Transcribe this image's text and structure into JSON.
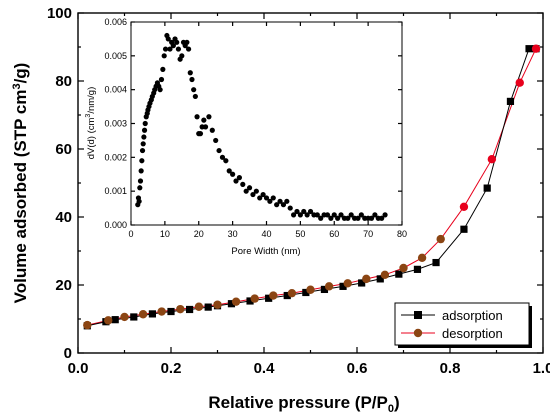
{
  "chart_data": [
    {
      "type": "line",
      "xlabel": "Relative pressure (P/P",
      "xlabel_sub": "0",
      "xlabel_tail": ")",
      "ylabel": "Volume adsorbed (STP cm",
      "ylabel_sup": "3",
      "ylabel_tail": "/g)",
      "xlim": [
        0.0,
        1.0
      ],
      "ylim": [
        0,
        100
      ],
      "xticks": [
        "0.0",
        "0.2",
        "0.4",
        "0.6",
        "0.8",
        "1.0"
      ],
      "yticks": [
        "0",
        "20",
        "40",
        "60",
        "80",
        "100"
      ],
      "legend_position": "bottom-right",
      "series": [
        {
          "name": "adsorption",
          "color": "#000000",
          "marker": "square",
          "x": [
            0.02,
            0.06,
            0.08,
            0.12,
            0.16,
            0.2,
            0.24,
            0.28,
            0.3,
            0.33,
            0.37,
            0.41,
            0.45,
            0.49,
            0.53,
            0.57,
            0.61,
            0.65,
            0.69,
            0.73,
            0.77,
            0.83,
            0.88,
            0.93,
            0.97,
            0.985
          ],
          "y": [
            8.0,
            9.2,
            9.8,
            10.6,
            11.5,
            12.2,
            12.8,
            13.5,
            13.9,
            14.5,
            15.3,
            16.1,
            16.9,
            17.8,
            18.7,
            19.6,
            20.6,
            21.8,
            23.2,
            24.6,
            26.6,
            36.4,
            48.5,
            74.0,
            89.5,
            89.5
          ],
          "values_note": ""
        },
        {
          "name": "desorption",
          "color": "#8b4513",
          "line_color": "#e8001c",
          "marker": "circle",
          "x": [
            0.985,
            0.95,
            0.89,
            0.83,
            0.78,
            0.74,
            0.7,
            0.66,
            0.62,
            0.58,
            0.54,
            0.5,
            0.46,
            0.42,
            0.38,
            0.34,
            0.3,
            0.26,
            0.22,
            0.18,
            0.14,
            0.1,
            0.065,
            0.02
          ],
          "y": [
            89.5,
            79.5,
            57.0,
            43.0,
            33.5,
            28.0,
            25.0,
            23.0,
            21.8,
            20.5,
            19.6,
            18.6,
            17.6,
            16.9,
            16.0,
            15.1,
            14.2,
            13.6,
            12.9,
            12.2,
            11.4,
            10.6,
            9.6,
            8.2
          ]
        }
      ]
    },
    {
      "type": "scatter",
      "xlabel": "Pore Width (nm)",
      "ylabel": "dV(d) (cm",
      "ylabel_sup": "3",
      "ylabel_tail": "/nm/g)",
      "xlim": [
        0,
        80
      ],
      "ylim": [
        0,
        0.006
      ],
      "xticks": [
        "0",
        "10",
        "20",
        "30",
        "40",
        "50",
        "60",
        "70",
        "80"
      ],
      "yticks": [
        "0.000",
        "0.001",
        "0.002",
        "0.003",
        "0.004",
        "0.005",
        "0.006"
      ],
      "series": [
        {
          "color": "#000000",
          "x": [
            2.0,
            2.2,
            2.4,
            2.6,
            2.8,
            3.0,
            3.2,
            3.4,
            3.6,
            3.8,
            4.0,
            4.2,
            4.5,
            4.8,
            5.0,
            5.3,
            5.6,
            6.0,
            6.3,
            6.7,
            7.0,
            7.4,
            7.8,
            8.2,
            8.6,
            9.0,
            9.4,
            9.8,
            10.2,
            10.6,
            11.0,
            11.5,
            12.0,
            12.5,
            13.0,
            13.5,
            14.0,
            14.5,
            15.0,
            15.5,
            16.0,
            16.5,
            17.0,
            17.5,
            18.0,
            18.5,
            19.0,
            19.5,
            20.0,
            20.5,
            21.0,
            21.5,
            22.0,
            23.0,
            24.0,
            25.0,
            26.0,
            27.0,
            28.0,
            29.0,
            30.0,
            31.0,
            32.0,
            33.0,
            34.0,
            35.0,
            36.0,
            37.0,
            38.0,
            39.0,
            40.0,
            41.0,
            42.0,
            43.0,
            44.0,
            45.0,
            46.0,
            47.0,
            48.0,
            49.0,
            50.0,
            51.0,
            52.0,
            53.0,
            54.0,
            55.0,
            56.0,
            57.0,
            58.0,
            59.0,
            60.0,
            61.0,
            62.0,
            63.0,
            64.0,
            65.0,
            66.0,
            67.0,
            68.0,
            69.0,
            70.0,
            71.0,
            72.0,
            73.0,
            74.0,
            75.0
          ],
          "y": [
            0.0006,
            0.0008,
            0.0007,
            0.0011,
            0.0013,
            0.0016,
            0.0019,
            0.0022,
            0.0024,
            0.0026,
            0.0028,
            0.003,
            0.0032,
            0.0033,
            0.0034,
            0.0035,
            0.0036,
            0.0037,
            0.0038,
            0.0039,
            0.004,
            0.0041,
            0.0042,
            0.0041,
            0.004,
            0.0043,
            0.0046,
            0.005,
            0.0052,
            0.0056,
            0.0055,
            0.0052,
            0.0054,
            0.0053,
            0.0055,
            0.0054,
            0.0052,
            0.0049,
            0.005,
            0.0054,
            0.0053,
            0.0054,
            0.0052,
            0.0045,
            0.0043,
            0.004,
            0.0038,
            0.0032,
            0.0027,
            0.0027,
            0.0029,
            0.0031,
            0.0029,
            0.0032,
            0.0028,
            0.0025,
            0.0022,
            0.002,
            0.0019,
            0.0016,
            0.0015,
            0.0013,
            0.0014,
            0.0012,
            0.001,
            0.0011,
            0.0009,
            0.001,
            0.0008,
            0.0009,
            0.0008,
            0.0007,
            0.0008,
            0.0006,
            0.0007,
            0.0006,
            0.0007,
            0.0005,
            0.0003,
            0.0004,
            0.0003,
            0.0004,
            0.0003,
            0.0004,
            0.0003,
            0.0003,
            0.0002,
            0.0003,
            0.0003,
            0.0002,
            0.0003,
            0.0002,
            0.0003,
            0.0002,
            0.0002,
            0.0003,
            0.0002,
            0.0002,
            0.0003,
            0.0002,
            0.0002,
            0.0002,
            0.0003,
            0.0002,
            0.0002,
            0.0003
          ]
        }
      ]
    }
  ]
}
